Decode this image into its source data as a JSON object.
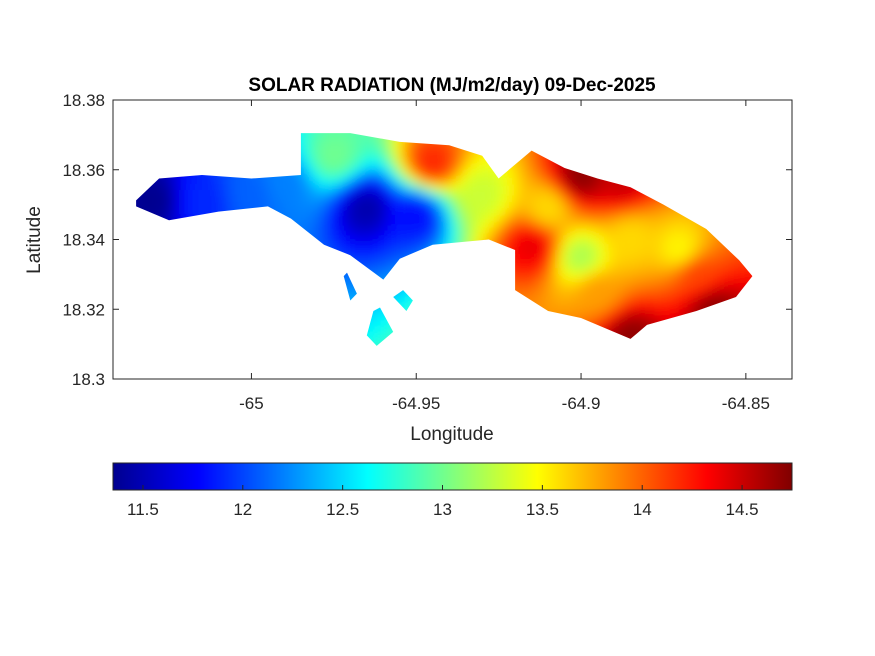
{
  "chart_data": {
    "type": "heatmap",
    "title": "SOLAR RADIATION (MJ/m2/day) 09-Dec-2025",
    "xlabel": "Longitude",
    "ylabel": "Latitude",
    "xlim": [
      -65.042,
      -64.836
    ],
    "ylim": [
      18.3,
      18.38
    ],
    "xticks": [
      {
        "value": -65,
        "label": "-65"
      },
      {
        "value": -64.95,
        "label": "-64.95"
      },
      {
        "value": -64.9,
        "label": "-64.9"
      },
      {
        "value": -64.85,
        "label": "-64.85"
      }
    ],
    "yticks": [
      {
        "value": 18.3,
        "label": "18.3"
      },
      {
        "value": 18.32,
        "label": "18.32"
      },
      {
        "value": 18.34,
        "label": "18.34"
      },
      {
        "value": 18.36,
        "label": "18.36"
      },
      {
        "value": 18.38,
        "label": "18.38"
      }
    ],
    "colorbar": {
      "colormap": "jet",
      "range": [
        11.35,
        14.75
      ],
      "location": "bottom",
      "ticks": [
        {
          "value": 11.5,
          "label": "11.5"
        },
        {
          "value": 12,
          "label": "12"
        },
        {
          "value": 12.5,
          "label": "12.5"
        },
        {
          "value": 13,
          "label": "13"
        },
        {
          "value": 13.5,
          "label": "13.5"
        },
        {
          "value": 14,
          "label": "14"
        },
        {
          "value": 14.5,
          "label": "14.5"
        }
      ]
    },
    "island_outline": [
      [
        -65.035,
        18.3512
      ],
      [
        -65.028,
        18.3575
      ],
      [
        -65.015,
        18.3585
      ],
      [
        -65.0,
        18.3575
      ],
      [
        -64.985,
        18.3585
      ],
      [
        -64.985,
        18.3705
      ],
      [
        -64.97,
        18.3705
      ],
      [
        -64.955,
        18.368
      ],
      [
        -64.94,
        18.367
      ],
      [
        -64.93,
        18.364
      ],
      [
        -64.925,
        18.3575
      ],
      [
        -64.915,
        18.3655
      ],
      [
        -64.905,
        18.3605
      ],
      [
        -64.895,
        18.3575
      ],
      [
        -64.885,
        18.355
      ],
      [
        -64.875,
        18.35
      ],
      [
        -64.862,
        18.343
      ],
      [
        -64.852,
        18.334
      ],
      [
        -64.848,
        18.3295
      ],
      [
        -64.853,
        18.3235
      ],
      [
        -64.865,
        18.3195
      ],
      [
        -64.88,
        18.3155
      ],
      [
        -64.885,
        18.3115
      ],
      [
        -64.9,
        18.3175
      ],
      [
        -64.91,
        18.3195
      ],
      [
        -64.92,
        18.3255
      ],
      [
        -64.92,
        18.337
      ],
      [
        -64.928,
        18.34
      ],
      [
        -64.945,
        18.3385
      ],
      [
        -64.955,
        18.3345
      ],
      [
        -64.96,
        18.3285
      ],
      [
        -64.97,
        18.3355
      ],
      [
        -64.978,
        18.3385
      ],
      [
        -64.988,
        18.346
      ],
      [
        -64.995,
        18.3495
      ],
      [
        -65.01,
        18.348
      ],
      [
        -65.025,
        18.3455
      ],
      [
        -65.035,
        18.3495
      ]
    ],
    "small_patches": [
      {
        "outline": [
          [
            -64.957,
            18.3235
          ],
          [
            -64.954,
            18.3255
          ],
          [
            -64.951,
            18.3225
          ],
          [
            -64.953,
            18.3195
          ]
        ]
      },
      {
        "outline": [
          [
            -64.963,
            18.3195
          ],
          [
            -64.961,
            18.3205
          ],
          [
            -64.957,
            18.3135
          ],
          [
            -64.962,
            18.3095
          ],
          [
            -64.965,
            18.3125
          ]
        ]
      },
      {
        "outline": [
          [
            -64.972,
            18.3295
          ],
          [
            -64.971,
            18.3305
          ],
          [
            -64.968,
            18.3245
          ],
          [
            -64.97,
            18.3225
          ]
        ]
      }
    ],
    "anomalies": [
      {
        "lon": -65.03,
        "lat": 18.351,
        "value": 11.4
      },
      {
        "lon": -65.015,
        "lat": 18.351,
        "value": 11.9
      },
      {
        "lon": -65.0,
        "lat": 18.353,
        "value": 12.1
      },
      {
        "lon": -64.99,
        "lat": 18.356,
        "value": 12.2
      },
      {
        "lon": -64.975,
        "lat": 18.364,
        "value": 13.0
      },
      {
        "lon": -64.965,
        "lat": 18.349,
        "value": 11.5
      },
      {
        "lon": -64.95,
        "lat": 18.347,
        "value": 11.8
      },
      {
        "lon": -64.945,
        "lat": 18.362,
        "value": 14.2
      },
      {
        "lon": -64.93,
        "lat": 18.353,
        "value": 13.3
      },
      {
        "lon": -64.91,
        "lat": 18.349,
        "value": 13.6
      },
      {
        "lon": -64.9,
        "lat": 18.358,
        "value": 14.7
      },
      {
        "lon": -64.888,
        "lat": 18.357,
        "value": 14.5
      },
      {
        "lon": -64.9,
        "lat": 18.335,
        "value": 13.2
      },
      {
        "lon": -64.915,
        "lat": 18.338,
        "value": 14.4
      },
      {
        "lon": -64.885,
        "lat": 18.34,
        "value": 13.6
      },
      {
        "lon": -64.87,
        "lat": 18.337,
        "value": 13.5
      },
      {
        "lon": -64.86,
        "lat": 18.32,
        "value": 14.7
      },
      {
        "lon": -64.885,
        "lat": 18.312,
        "value": 14.7
      },
      {
        "lon": -64.865,
        "lat": 18.33,
        "value": 14.1
      },
      {
        "lon": -64.895,
        "lat": 18.325,
        "value": 13.8
      }
    ],
    "grid": false
  }
}
